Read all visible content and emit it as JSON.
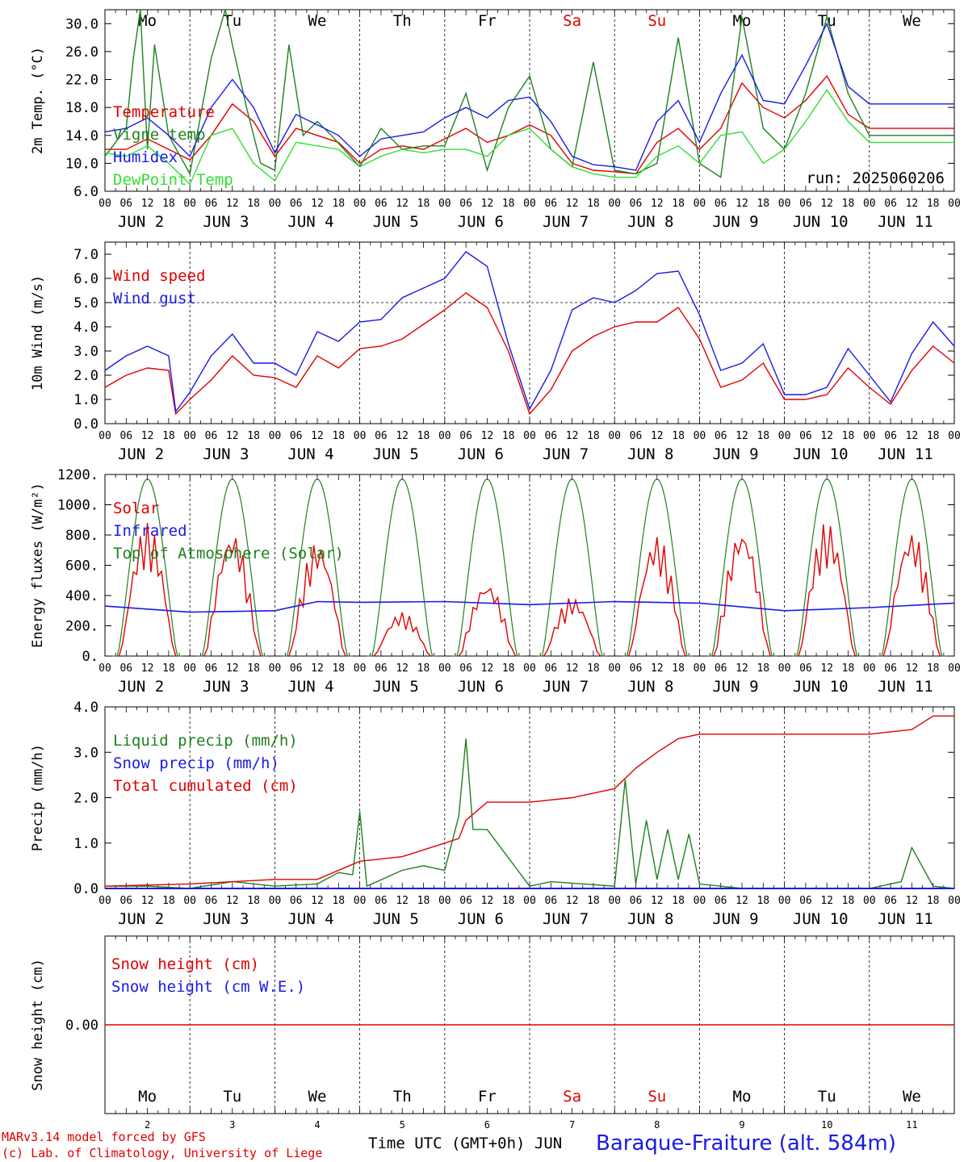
{
  "chart_data": [
    {
      "type": "line",
      "ylabel": "2m Temp. (°C)",
      "ylim": [
        6,
        32
      ],
      "yticks": [
        "6.0",
        "10.0",
        "14.0",
        "18.0",
        "22.0",
        "26.0",
        "30.0"
      ],
      "run_label": "run: 2025060206",
      "x_range_hours": [
        0,
        240
      ],
      "x_unit": "hours from 2 JUN 00 UTC",
      "series": [
        {
          "name": "Temperature",
          "color": "#e00000",
          "x": [
            0,
            6,
            12,
            18,
            24,
            30,
            36,
            42,
            48,
            54,
            60,
            66,
            72,
            78,
            84,
            90,
            96,
            102,
            108,
            114,
            120,
            126,
            132,
            138,
            144,
            150,
            156,
            162,
            168,
            174,
            180,
            186,
            192,
            198,
            204,
            210,
            216,
            222,
            228,
            234,
            240
          ],
          "y": [
            12,
            12,
            13.5,
            12,
            10.5,
            14,
            18.5,
            16,
            11,
            15,
            14,
            13,
            10,
            12,
            12.5,
            12,
            13.5,
            15,
            13,
            14,
            15.5,
            14,
            10,
            9,
            8.8,
            8.5,
            13,
            15,
            12,
            15,
            21.5,
            18,
            16.5,
            19,
            22.5,
            17,
            15,
            15,
            15,
            15,
            15
          ]
        },
        {
          "name": "Vigne temp",
          "color": "#208020",
          "x": [
            0,
            6,
            8,
            10,
            12,
            14,
            18,
            24,
            30,
            34,
            36,
            40,
            44,
            48,
            52,
            56,
            60,
            64,
            72,
            78,
            84,
            90,
            96,
            102,
            108,
            114,
            120,
            126,
            132,
            138,
            144,
            150,
            156,
            162,
            168,
            174,
            180,
            186,
            192,
            198,
            204,
            210,
            216,
            222,
            228,
            234,
            240
          ],
          "y": [
            11,
            15,
            25,
            32,
            12,
            27,
            14,
            8.5,
            25,
            32,
            27,
            18,
            10,
            9,
            27,
            14,
            16,
            14,
            9.5,
            15,
            12,
            12.5,
            12.5,
            20,
            9,
            18,
            22.5,
            12,
            9.5,
            24.5,
            9,
            8.5,
            10,
            28,
            10,
            8,
            31,
            15,
            12,
            20,
            31,
            20,
            14,
            14,
            14,
            14,
            14
          ]
        },
        {
          "name": "Humidex",
          "color": "#1a1ae6",
          "x": [
            0,
            6,
            12,
            18,
            24,
            30,
            36,
            42,
            48,
            54,
            60,
            66,
            72,
            78,
            84,
            90,
            96,
            102,
            108,
            114,
            120,
            126,
            132,
            138,
            144,
            150,
            156,
            162,
            168,
            174,
            180,
            186,
            192,
            198,
            204,
            210,
            216,
            222,
            228,
            234,
            240
          ],
          "y": [
            14.5,
            15,
            16.5,
            14,
            11,
            18,
            22,
            18,
            11.5,
            17,
            15.5,
            14,
            11,
            13.5,
            14,
            14.5,
            16.5,
            18,
            16.5,
            19,
            19.5,
            16,
            11,
            9.8,
            9.5,
            9,
            16,
            19,
            13,
            20,
            25.5,
            19,
            18.5,
            24,
            30,
            21,
            18.5,
            18.5,
            18.5,
            18.5,
            18.5
          ]
        },
        {
          "name": "DewPoint Temp",
          "color": "#33dd33",
          "x": [
            0,
            6,
            12,
            18,
            24,
            30,
            36,
            42,
            48,
            54,
            60,
            66,
            72,
            78,
            84,
            90,
            96,
            102,
            108,
            114,
            120,
            126,
            132,
            138,
            144,
            150,
            156,
            162,
            168,
            174,
            180,
            186,
            192,
            198,
            204,
            210,
            216,
            222,
            228,
            234,
            240
          ],
          "y": [
            11.5,
            11,
            12.5,
            10,
            7,
            14,
            15,
            10,
            7.5,
            13,
            12.5,
            12,
            9.5,
            11,
            12,
            11.5,
            12,
            12,
            11,
            14,
            15,
            12,
            9.5,
            8.5,
            8,
            8,
            11,
            12.5,
            10,
            14,
            14.5,
            10,
            12,
            16,
            20.5,
            16,
            13,
            13,
            13,
            13,
            13
          ]
        }
      ]
    },
    {
      "type": "line",
      "ylabel": "10m Wind (m/s)",
      "ylim": [
        0,
        7.5
      ],
      "yticks": [
        "0.0",
        "1.0",
        "2.0",
        "3.0",
        "4.0",
        "5.0",
        "6.0",
        "7.0"
      ],
      "reference_line": 5.0,
      "x_range_hours": [
        0,
        240
      ],
      "series": [
        {
          "name": "Wind speed",
          "color": "#e00000",
          "x": [
            0,
            6,
            12,
            18,
            20,
            24,
            30,
            36,
            42,
            48,
            54,
            60,
            66,
            72,
            78,
            84,
            90,
            96,
            102,
            108,
            114,
            120,
            126,
            132,
            138,
            144,
            150,
            156,
            162,
            168,
            174,
            180,
            186,
            192,
            198,
            204,
            210,
            216,
            222,
            228,
            234,
            240
          ],
          "y": [
            1.5,
            2,
            2.3,
            2.2,
            0.4,
            1,
            1.8,
            2.8,
            2,
            1.9,
            1.5,
            2.8,
            2.3,
            3.1,
            3.2,
            3.5,
            4.1,
            4.7,
            5.4,
            4.8,
            3,
            0.4,
            1.4,
            3,
            3.6,
            4,
            4.2,
            4.2,
            4.8,
            3.5,
            1.5,
            1.8,
            2.5,
            1,
            1,
            1.2,
            2.3,
            1.5,
            0.8,
            2.2,
            3.2,
            2.5
          ]
        },
        {
          "name": "Wind gust",
          "color": "#1a1ae6",
          "x": [
            0,
            6,
            12,
            18,
            20,
            24,
            30,
            36,
            42,
            48,
            54,
            60,
            66,
            72,
            78,
            84,
            90,
            96,
            102,
            108,
            114,
            120,
            126,
            132,
            138,
            144,
            150,
            156,
            162,
            168,
            174,
            180,
            186,
            192,
            198,
            204,
            210,
            216,
            222,
            228,
            234,
            240
          ],
          "y": [
            2.2,
            2.8,
            3.2,
            2.8,
            0.5,
            1.3,
            2.8,
            3.7,
            2.5,
            2.5,
            2,
            3.8,
            3.4,
            4.2,
            4.3,
            5.2,
            5.6,
            6,
            7.1,
            6.5,
            3.3,
            0.6,
            2.2,
            4.7,
            5.2,
            5,
            5.5,
            6.2,
            6.3,
            4.5,
            2.2,
            2.5,
            3.3,
            1.2,
            1.2,
            1.5,
            3.1,
            2,
            0.9,
            2.9,
            4.2,
            3.2
          ]
        }
      ]
    },
    {
      "type": "line",
      "ylabel": "Energy fluxes (W/m²)",
      "ylim": [
        0,
        1200
      ],
      "yticks": [
        "0.",
        "200.",
        "400.",
        "600.",
        "800.",
        "1000.",
        "1200."
      ],
      "x_range_hours": [
        0,
        240
      ],
      "series": [
        {
          "name": "Solar",
          "color": "#e00000",
          "daily_peaks": [
            880,
            830,
            760,
            290,
            490,
            390,
            800,
            850,
            890,
            830
          ]
        },
        {
          "name": "Infrared",
          "color": "#1a1ae6",
          "x": [
            0,
            24,
            48,
            60,
            72,
            96,
            120,
            144,
            168,
            192,
            216,
            240
          ],
          "y": [
            330,
            290,
            300,
            360,
            355,
            360,
            340,
            360,
            350,
            300,
            320,
            350
          ]
        },
        {
          "name": "Top of Atmosphere (Solar)",
          "color": "#208020",
          "daily_peak": 1170
        }
      ]
    },
    {
      "type": "line",
      "ylabel": "Precip (mm/h)",
      "ylim": [
        0,
        4.0
      ],
      "yticks": [
        "0.0",
        "1.0",
        "2.0",
        "3.0",
        "4.0"
      ],
      "x_range_hours": [
        0,
        240
      ],
      "series": [
        {
          "name": "Liquid precip (mm/h)",
          "color": "#208020",
          "x": [
            0,
            6,
            12,
            24,
            36,
            48,
            60,
            66,
            70,
            72,
            74,
            84,
            90,
            96,
            100,
            102,
            104,
            108,
            120,
            126,
            144,
            147,
            150,
            153,
            156,
            159,
            162,
            165,
            168,
            180,
            216,
            222,
            225,
            228,
            234,
            240
          ],
          "y": [
            0.05,
            0.05,
            0.05,
            0,
            0.15,
            0.05,
            0.1,
            0.35,
            0.3,
            1.7,
            0.05,
            0.4,
            0.5,
            0.4,
            1.6,
            3.3,
            1.3,
            1.3,
            0.05,
            0.15,
            0.05,
            2.4,
            0.1,
            1.5,
            0.2,
            1.3,
            0.2,
            1.2,
            0.1,
            0,
            0,
            0.1,
            0.15,
            0.9,
            0.05,
            0
          ]
        },
        {
          "name": "Snow precip (mm/h)",
          "color": "#1a1ae6",
          "x": [
            0,
            240
          ],
          "y": [
            0,
            0
          ]
        },
        {
          "name": "Total cumulated (cm)",
          "color": "#e00000",
          "x": [
            0,
            24,
            48,
            60,
            72,
            84,
            96,
            100,
            102,
            108,
            120,
            132,
            144,
            150,
            156,
            162,
            168,
            180,
            216,
            228,
            234,
            240
          ],
          "y": [
            0.05,
            0.1,
            0.2,
            0.2,
            0.6,
            0.7,
            1.0,
            1.1,
            1.5,
            1.9,
            1.9,
            2.0,
            2.2,
            2.65,
            3.0,
            3.3,
            3.4,
            3.4,
            3.4,
            3.5,
            3.8,
            3.8
          ]
        }
      ]
    },
    {
      "type": "line",
      "ylabel": "Snow height (cm)",
      "yticks": [
        "0.00"
      ],
      "series": [
        {
          "name": "Snow height (cm)",
          "color": "#e00000",
          "x": [
            0,
            240
          ],
          "y": [
            0,
            0
          ]
        },
        {
          "name": "Snow height (cm W.E.)",
          "color": "#1a1ae6",
          "x": [
            0,
            240
          ],
          "y": [
            0,
            0
          ]
        }
      ]
    }
  ],
  "days": {
    "weekday_labels": [
      "Mo",
      "Tu",
      "We",
      "Th",
      "Fr",
      "Sa",
      "Su",
      "Mo",
      "Tu",
      "We"
    ],
    "weekend_color": "#e00000",
    "weekday_color": "#000000",
    "weekend_indices": [
      5,
      6
    ],
    "date_labels": [
      "JUN  2",
      "JUN  3",
      "JUN  4",
      "JUN  5",
      "JUN  6",
      "JUN  7",
      "JUN  8",
      "JUN  9",
      "JUN 10",
      "JUN 11"
    ],
    "hour_ticks": [
      "00",
      "06",
      "12",
      "18"
    ],
    "bottom_day_numbers": [
      "2",
      "3",
      "4",
      "5",
      "6",
      "7",
      "8",
      "9",
      "10",
      "11"
    ]
  },
  "footer": {
    "credit_line1": "MARv3.14 model forced by GFS",
    "credit_line2": "(c) Lab. of Climatology, University of Liege",
    "time_label": "Time UTC (GMT+0h) JUN",
    "station": "Baraque-Fraiture (alt. 584m)"
  }
}
